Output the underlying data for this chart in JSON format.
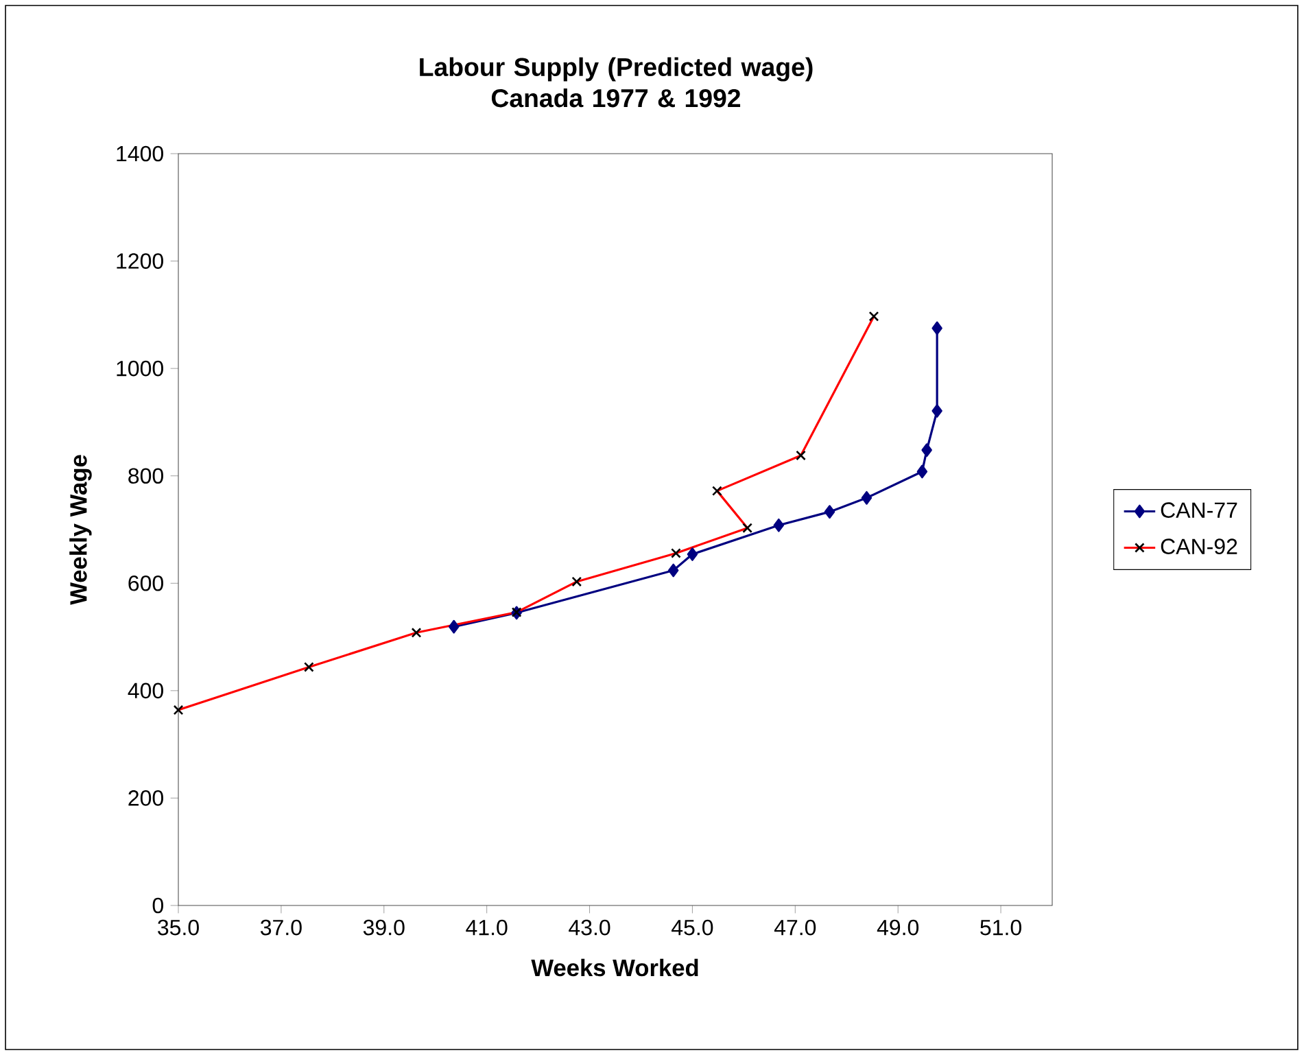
{
  "chart_data": {
    "type": "line",
    "title": "Labour Supply (Predicted wage)\nCanada 1977 & 1992",
    "xlabel": "Weeks Worked",
    "ylabel": "Weekly Wage",
    "xlim": [
      35,
      52
    ],
    "ylim": [
      0,
      1400
    ],
    "xticks": [
      {
        "value": 35,
        "label": "35.0"
      },
      {
        "value": 37,
        "label": "37.0"
      },
      {
        "value": 39,
        "label": "39.0"
      },
      {
        "value": 41,
        "label": "41.0"
      },
      {
        "value": 43,
        "label": "43.0"
      },
      {
        "value": 45,
        "label": "45.0"
      },
      {
        "value": 47,
        "label": "47.0"
      },
      {
        "value": 49,
        "label": "49.0"
      },
      {
        "value": 51,
        "label": "51.0"
      }
    ],
    "yticks": [
      0,
      200,
      400,
      600,
      800,
      1000,
      1200,
      1400
    ],
    "grid": false,
    "legend": "right",
    "line_style": "solid",
    "series": [
      {
        "name": "CAN-77",
        "color": "#000080",
        "marker": "diamond",
        "x": [
          40.36,
          41.58,
          44.63,
          45.0,
          46.68,
          47.67,
          48.39,
          49.47,
          49.56,
          49.76,
          49.76
        ],
        "values": [
          519,
          545,
          624,
          654,
          708,
          733,
          759,
          808,
          848,
          921,
          1075
        ]
      },
      {
        "name": "CAN-92",
        "color": "#ff0000",
        "marker": "cross",
        "x": [
          35.0,
          37.54,
          39.63,
          41.58,
          42.75,
          44.68,
          46.07,
          45.48,
          47.11,
          48.53
        ],
        "values": [
          364,
          444,
          508,
          546,
          603,
          656,
          703,
          772,
          838,
          1097
        ]
      }
    ]
  }
}
